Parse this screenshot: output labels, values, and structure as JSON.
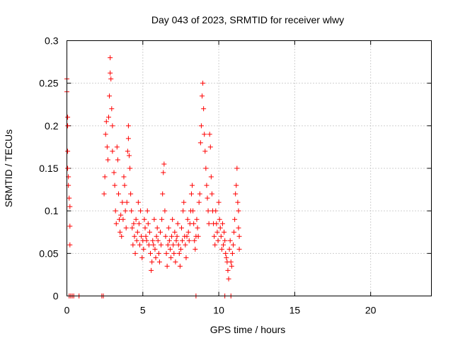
{
  "chart_data": {
    "type": "scatter",
    "title": "Day 043 of 2023, SRMTID for receiver wlwy",
    "xlabel": "GPS time / hours",
    "ylabel": "SRMTID / TECUs",
    "xlim": [
      0,
      24
    ],
    "ylim": [
      0,
      0.3
    ],
    "x_ticks": [
      0,
      5,
      10,
      15,
      20
    ],
    "x_tick_labels": [
      "0",
      "5",
      "10",
      "15",
      "20"
    ],
    "y_ticks": [
      0,
      0.05,
      0.1,
      0.15,
      0.2,
      0.25,
      0.3
    ],
    "y_tick_labels": [
      "0",
      "0.05",
      "0.1",
      "0.15",
      "0.2",
      "0.25",
      "0.3"
    ],
    "grid": true,
    "marker": "plus",
    "series": [
      {
        "name": "SRMTID",
        "color": "#ff0000",
        "points": [
          [
            0.0,
            0.255
          ],
          [
            0.0,
            0.24
          ],
          [
            0.05,
            0.21
          ],
          [
            0.05,
            0.2
          ],
          [
            0.05,
            0.17
          ],
          [
            0.05,
            0.15
          ],
          [
            0.1,
            0.14
          ],
          [
            0.1,
            0.13
          ],
          [
            0.15,
            0.115
          ],
          [
            0.2,
            0.105
          ],
          [
            0.2,
            0.082
          ],
          [
            0.2,
            0.06
          ],
          [
            0.15,
            0.0
          ],
          [
            0.25,
            0.0
          ],
          [
            0.35,
            0.0
          ],
          [
            0.45,
            0.0
          ],
          [
            0.8,
            0.0
          ],
          [
            2.3,
            0.0
          ],
          [
            2.4,
            0.0
          ],
          [
            8.5,
            0.0
          ],
          [
            10.4,
            0.0
          ],
          [
            10.8,
            0.0
          ],
          [
            2.45,
            0.12
          ],
          [
            2.5,
            0.14
          ],
          [
            2.55,
            0.19
          ],
          [
            2.6,
            0.205
          ],
          [
            2.65,
            0.175
          ],
          [
            2.7,
            0.16
          ],
          [
            2.75,
            0.21
          ],
          [
            2.8,
            0.235
          ],
          [
            2.85,
            0.28
          ],
          [
            2.85,
            0.262
          ],
          [
            2.9,
            0.255
          ],
          [
            2.95,
            0.22
          ],
          [
            3.0,
            0.2
          ],
          [
            3.0,
            0.17
          ],
          [
            3.1,
            0.145
          ],
          [
            3.15,
            0.13
          ],
          [
            3.2,
            0.1
          ],
          [
            3.25,
            0.085
          ],
          [
            3.3,
            0.175
          ],
          [
            3.35,
            0.16
          ],
          [
            3.4,
            0.12
          ],
          [
            3.45,
            0.09
          ],
          [
            3.5,
            0.075
          ],
          [
            3.55,
            0.095
          ],
          [
            3.6,
            0.07
          ],
          [
            3.65,
            0.11
          ],
          [
            3.7,
            0.09
          ],
          [
            3.75,
            0.14
          ],
          [
            3.8,
            0.13
          ],
          [
            3.85,
            0.1
          ],
          [
            3.9,
            0.08
          ],
          [
            3.95,
            0.11
          ],
          [
            4.0,
            0.17
          ],
          [
            4.05,
            0.2
          ],
          [
            4.05,
            0.185
          ],
          [
            4.1,
            0.165
          ],
          [
            4.15,
            0.15
          ],
          [
            4.2,
            0.12
          ],
          [
            4.25,
            0.1
          ],
          [
            4.3,
            0.08
          ],
          [
            4.35,
            0.06
          ],
          [
            4.4,
            0.085
          ],
          [
            4.45,
            0.07
          ],
          [
            4.5,
            0.05
          ],
          [
            4.55,
            0.09
          ],
          [
            4.6,
            0.065
          ],
          [
            4.65,
            0.075
          ],
          [
            4.7,
            0.11
          ],
          [
            4.75,
            0.085
          ],
          [
            4.8,
            0.06
          ],
          [
            4.85,
            0.1
          ],
          [
            4.9,
            0.07
          ],
          [
            4.95,
            0.045
          ],
          [
            5.0,
            0.065
          ],
          [
            5.05,
            0.055
          ],
          [
            5.1,
            0.09
          ],
          [
            5.15,
            0.08
          ],
          [
            5.2,
            0.07
          ],
          [
            5.25,
            0.065
          ],
          [
            5.3,
            0.1
          ],
          [
            5.35,
            0.085
          ],
          [
            5.4,
            0.06
          ],
          [
            5.45,
            0.075
          ],
          [
            5.5,
            0.05
          ],
          [
            5.55,
            0.03
          ],
          [
            5.6,
            0.04
          ],
          [
            5.65,
            0.065
          ],
          [
            5.7,
            0.06
          ],
          [
            5.75,
            0.09
          ],
          [
            5.8,
            0.055
          ],
          [
            5.85,
            0.045
          ],
          [
            5.9,
            0.07
          ],
          [
            5.95,
            0.08
          ],
          [
            6.0,
            0.065
          ],
          [
            6.05,
            0.05
          ],
          [
            6.1,
            0.04
          ],
          [
            6.15,
            0.075
          ],
          [
            6.2,
            0.06
          ],
          [
            6.25,
            0.09
          ],
          [
            6.3,
            0.12
          ],
          [
            6.35,
            0.145
          ],
          [
            6.4,
            0.155
          ],
          [
            6.45,
            0.1
          ],
          [
            6.5,
            0.07
          ],
          [
            6.55,
            0.05
          ],
          [
            6.6,
            0.035
          ],
          [
            6.65,
            0.06
          ],
          [
            6.7,
            0.08
          ],
          [
            6.75,
            0.065
          ],
          [
            6.8,
            0.055
          ],
          [
            6.85,
            0.045
          ],
          [
            6.9,
            0.07
          ],
          [
            6.95,
            0.09
          ],
          [
            7.0,
            0.06
          ],
          [
            7.05,
            0.05
          ],
          [
            7.1,
            0.075
          ],
          [
            7.15,
            0.04
          ],
          [
            7.2,
            0.065
          ],
          [
            7.25,
            0.07
          ],
          [
            7.3,
            0.085
          ],
          [
            7.35,
            0.06
          ],
          [
            7.4,
            0.05
          ],
          [
            7.45,
            0.035
          ],
          [
            7.5,
            0.055
          ],
          [
            7.55,
            0.08
          ],
          [
            7.6,
            0.065
          ],
          [
            7.65,
            0.1
          ],
          [
            7.7,
            0.11
          ],
          [
            7.75,
            0.07
          ],
          [
            7.8,
            0.06
          ],
          [
            7.85,
            0.045
          ],
          [
            7.9,
            0.07
          ],
          [
            7.95,
            0.09
          ],
          [
            8.0,
            0.075
          ],
          [
            8.05,
            0.065
          ],
          [
            8.1,
            0.085
          ],
          [
            8.15,
            0.1
          ],
          [
            8.2,
            0.12
          ],
          [
            8.25,
            0.13
          ],
          [
            8.3,
            0.1
          ],
          [
            8.35,
            0.085
          ],
          [
            8.4,
            0.065
          ],
          [
            8.45,
            0.055
          ],
          [
            8.5,
            0.07
          ],
          [
            8.55,
            0.09
          ],
          [
            8.6,
            0.08
          ],
          [
            8.65,
            0.07
          ],
          [
            8.7,
            0.11
          ],
          [
            8.75,
            0.12
          ],
          [
            8.8,
            0.18
          ],
          [
            8.85,
            0.2
          ],
          [
            8.9,
            0.235
          ],
          [
            8.95,
            0.25
          ],
          [
            9.0,
            0.22
          ],
          [
            9.05,
            0.19
          ],
          [
            9.1,
            0.17
          ],
          [
            9.15,
            0.15
          ],
          [
            9.2,
            0.13
          ],
          [
            9.25,
            0.115
          ],
          [
            9.3,
            0.1
          ],
          [
            9.35,
            0.085
          ],
          [
            9.4,
            0.19
          ],
          [
            9.45,
            0.175
          ],
          [
            9.5,
            0.14
          ],
          [
            9.55,
            0.12
          ],
          [
            9.6,
            0.1
          ],
          [
            9.65,
            0.085
          ],
          [
            9.7,
            0.07
          ],
          [
            9.75,
            0.06
          ],
          [
            9.8,
            0.1
          ],
          [
            9.85,
            0.085
          ],
          [
            9.9,
            0.075
          ],
          [
            9.95,
            0.065
          ],
          [
            10.0,
            0.11
          ],
          [
            10.05,
            0.09
          ],
          [
            10.1,
            0.08
          ],
          [
            10.15,
            0.07
          ],
          [
            10.2,
            0.055
          ],
          [
            10.25,
            0.085
          ],
          [
            10.3,
            0.06
          ],
          [
            10.35,
            0.075
          ],
          [
            10.4,
            0.065
          ],
          [
            10.45,
            0.05
          ],
          [
            10.5,
            0.045
          ],
          [
            10.55,
            0.04
          ],
          [
            10.6,
            0.03
          ],
          [
            10.65,
            0.02
          ],
          [
            10.7,
            0.055
          ],
          [
            10.75,
            0.065
          ],
          [
            10.8,
            0.04
          ],
          [
            10.85,
            0.035
          ],
          [
            10.9,
            0.05
          ],
          [
            10.95,
            0.06
          ],
          [
            11.0,
            0.075
          ],
          [
            11.05,
            0.09
          ],
          [
            11.1,
            0.12
          ],
          [
            11.15,
            0.13
          ],
          [
            11.2,
            0.15
          ],
          [
            11.25,
            0.11
          ],
          [
            11.3,
            0.1
          ],
          [
            11.3,
            0.08
          ],
          [
            11.35,
            0.07
          ],
          [
            11.35,
            0.055
          ]
        ]
      }
    ]
  }
}
